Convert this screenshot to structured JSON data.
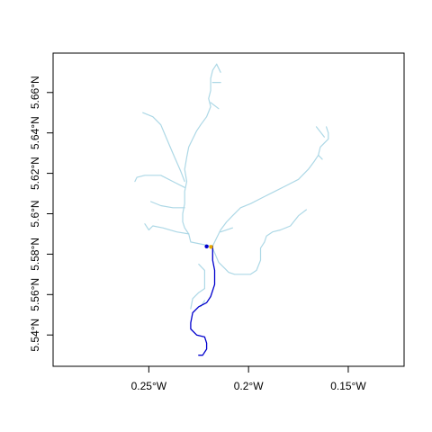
{
  "map": {
    "projection": "geographic",
    "x_axis": {
      "range": [
        -0.298,
        -0.122
      ],
      "ticks": [
        {
          "value": -0.25,
          "label": "0.25°W"
        },
        {
          "value": -0.2,
          "label": "0.2°W"
        },
        {
          "value": -0.15,
          "label": "0.15°W"
        }
      ]
    },
    "y_axis": {
      "range": [
        5.5245,
        5.6795
      ],
      "ticks": [
        {
          "value": 5.54,
          "label": "5.54°N"
        },
        {
          "value": 5.56,
          "label": "5.56°N"
        },
        {
          "value": 5.58,
          "label": "5.58°N"
        },
        {
          "value": 5.6,
          "label": "5.6°N"
        },
        {
          "value": 5.62,
          "label": "5.62°N"
        },
        {
          "value": 5.64,
          "label": "5.64°N"
        },
        {
          "value": 5.66,
          "label": "5.66°N"
        }
      ]
    },
    "colors": {
      "upstream_network": "#add8e6",
      "downstream_path": "#0000cd",
      "start_point": "#0000cd",
      "outlet_point": "#e6a800",
      "frame": "#000000"
    },
    "upstream_network": [
      [
        [
          -0.216,
          5.674
        ],
        [
          -0.218,
          5.671
        ],
        [
          -0.219,
          5.667
        ],
        [
          -0.219,
          5.661
        ],
        [
          -0.22,
          5.657
        ],
        [
          -0.219,
          5.653
        ],
        [
          -0.221,
          5.648
        ],
        [
          -0.224,
          5.644
        ],
        [
          -0.226,
          5.641
        ],
        [
          -0.228,
          5.637
        ],
        [
          -0.23,
          5.633
        ],
        [
          -0.231,
          5.628
        ],
        [
          -0.232,
          5.622
        ],
        [
          -0.231,
          5.616
        ],
        [
          -0.232,
          5.611
        ],
        [
          -0.232,
          5.605
        ],
        [
          -0.233,
          5.6
        ],
        [
          -0.233,
          5.596
        ],
        [
          -0.232,
          5.593
        ],
        [
          -0.23,
          5.59
        ],
        [
          -0.229,
          5.586
        ],
        [
          -0.219,
          5.584
        ]
      ],
      [
        [
          -0.218,
          5.665
        ],
        [
          -0.214,
          5.665
        ]
      ],
      [
        [
          -0.219,
          5.655
        ],
        [
          -0.215,
          5.652
        ]
      ],
      [
        [
          -0.216,
          5.674
        ],
        [
          -0.214,
          5.67
        ]
      ],
      [
        [
          -0.253,
          5.65
        ],
        [
          -0.248,
          5.648
        ],
        [
          -0.244,
          5.644
        ],
        [
          -0.241,
          5.637
        ],
        [
          -0.238,
          5.63
        ],
        [
          -0.234,
          5.621
        ],
        [
          -0.232,
          5.616
        ]
      ],
      [
        [
          -0.257,
          5.616
        ],
        [
          -0.256,
          5.618
        ],
        [
          -0.252,
          5.619
        ],
        [
          -0.244,
          5.619
        ],
        [
          -0.238,
          5.616
        ],
        [
          -0.232,
          5.613
        ]
      ],
      [
        [
          -0.249,
          5.606
        ],
        [
          -0.244,
          5.604
        ],
        [
          -0.238,
          5.603
        ],
        [
          -0.232,
          5.603
        ]
      ],
      [
        [
          -0.252,
          5.595
        ],
        [
          -0.25,
          5.592
        ],
        [
          -0.248,
          5.594
        ],
        [
          -0.243,
          5.593
        ],
        [
          -0.236,
          5.591
        ],
        [
          -0.23,
          5.59
        ]
      ],
      [
        [
          -0.161,
          5.643
        ],
        [
          -0.16,
          5.64
        ],
        [
          -0.16,
          5.637
        ],
        [
          -0.164,
          5.633
        ],
        [
          -0.165,
          5.629
        ],
        [
          -0.167,
          5.626
        ],
        [
          -0.17,
          5.622
        ],
        [
          -0.173,
          5.619
        ],
        [
          -0.175,
          5.617
        ],
        [
          -0.181,
          5.614
        ],
        [
          -0.187,
          5.611
        ],
        [
          -0.193,
          5.608
        ],
        [
          -0.199,
          5.605
        ],
        [
          -0.204,
          5.603
        ],
        [
          -0.208,
          5.599
        ],
        [
          -0.211,
          5.596
        ],
        [
          -0.214,
          5.592
        ],
        [
          -0.216,
          5.588
        ],
        [
          -0.218,
          5.584
        ]
      ],
      [
        [
          -0.165,
          5.629
        ],
        [
          -0.163,
          5.627
        ]
      ],
      [
        [
          -0.162,
          5.638
        ],
        [
          -0.166,
          5.643
        ]
      ],
      [
        [
          -0.171,
          5.602
        ],
        [
          -0.175,
          5.599
        ],
        [
          -0.179,
          5.594
        ],
        [
          -0.184,
          5.592
        ],
        [
          -0.188,
          5.591
        ],
        [
          -0.191,
          5.589
        ],
        [
          -0.192,
          5.586
        ],
        [
          -0.194,
          5.583
        ],
        [
          -0.194,
          5.577
        ],
        [
          -0.196,
          5.572
        ],
        [
          -0.199,
          5.57
        ],
        [
          -0.207,
          5.57
        ],
        [
          -0.21,
          5.571
        ],
        [
          -0.212,
          5.573
        ],
        [
          -0.215,
          5.576
        ],
        [
          -0.218,
          5.583
        ]
      ],
      [
        [
          -0.225,
          5.575
        ],
        [
          -0.222,
          5.572
        ],
        [
          -0.222,
          5.563
        ],
        [
          -0.225,
          5.561
        ],
        [
          -0.228,
          5.558
        ],
        [
          -0.229,
          5.553
        ]
      ],
      [
        [
          -0.224,
          5.554
        ],
        [
          -0.222,
          5.557
        ]
      ],
      [
        [
          -0.208,
          5.593
        ],
        [
          -0.214,
          5.591
        ]
      ]
    ],
    "downstream_path": [
      [
        -0.218,
        5.584
      ],
      [
        -0.218,
        5.581
      ],
      [
        -0.218,
        5.577
      ],
      [
        -0.217,
        5.572
      ],
      [
        -0.217,
        5.569
      ],
      [
        -0.217,
        5.565
      ],
      [
        -0.219,
        5.559
      ],
      [
        -0.221,
        5.556
      ],
      [
        -0.225,
        5.554
      ],
      [
        -0.228,
        5.551
      ],
      [
        -0.229,
        5.546
      ],
      [
        -0.229,
        5.543
      ],
      [
        -0.226,
        5.54
      ],
      [
        -0.222,
        5.539
      ],
      [
        -0.221,
        5.536
      ],
      [
        -0.221,
        5.533
      ],
      [
        -0.223,
        5.53
      ],
      [
        -0.225,
        5.53
      ]
    ],
    "points": [
      {
        "name": "start-point",
        "lon": -0.221,
        "lat": 5.5838,
        "color_key": "start_point"
      },
      {
        "name": "outlet-point",
        "lon": -0.2188,
        "lat": 5.5836,
        "color_key": "outlet_point"
      }
    ]
  }
}
